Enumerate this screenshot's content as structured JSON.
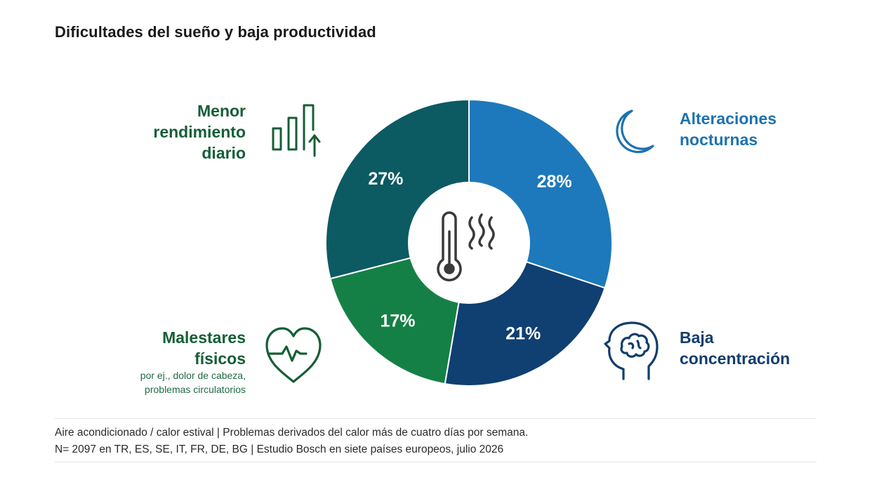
{
  "title": "Dificultades del sueño y baja productividad",
  "chart_data": {
    "type": "donut",
    "unit": "%",
    "slices": [
      {
        "label": "Alteraciones nocturnas",
        "value": 28,
        "display": "28%",
        "color": "#1d79bb"
      },
      {
        "label": "Baja concentración",
        "value": 21,
        "display": "21%",
        "color": "#103f71"
      },
      {
        "label": "Malestares físicos",
        "value": 17,
        "display": "17%",
        "color": "#158045"
      },
      {
        "label": "Menor rendimiento diario",
        "value": 27,
        "display": "27%",
        "color": "#0c5a62"
      }
    ],
    "center_icon": "thermometer-heat-icon"
  },
  "categories": {
    "menor": {
      "lines": [
        "Menor",
        "rendimiento",
        "diario"
      ],
      "color": "#155e36",
      "icon": "bar-chart-up-icon"
    },
    "alteraciones": {
      "lines": [
        "Alteraciones",
        "nocturnas"
      ],
      "color": "#1d72ae",
      "icon": "moon-icon"
    },
    "malestares": {
      "lines": [
        "Malestares",
        "físicos"
      ],
      "sub": [
        "por ej., dolor de cabeza,",
        "problemas circulatorios"
      ],
      "color": "#155e36",
      "icon": "heart-pulse-icon"
    },
    "baja": {
      "lines": [
        "Baja",
        "concentración"
      ],
      "color": "#123d6b",
      "icon": "head-brain-icon"
    }
  },
  "footer": {
    "line1": "Aire acondicionado / calor estival | Problemas derivados del calor más de cuatro días por semana.",
    "line2": "N= 2097 en TR, ES, SE, IT, FR, DE, BG | Estudio Bosch en siete países europeos, julio 2026"
  }
}
